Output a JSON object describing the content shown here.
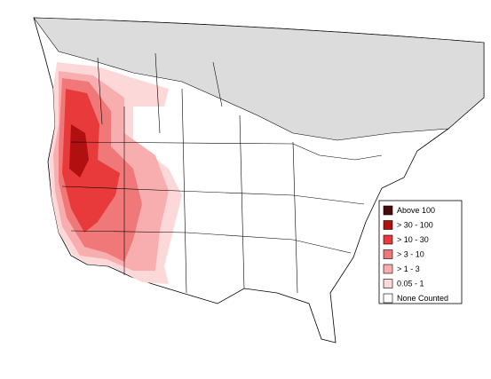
{
  "legend": {
    "items": [
      {
        "label": "Above 100",
        "color": "#4a0a0a"
      },
      {
        "label": "> 30 - 100",
        "color": "#b01010"
      },
      {
        "label": "> 10 - 30",
        "color": "#e83a3a"
      },
      {
        "label": "> 3 - 10",
        "color": "#f07878"
      },
      {
        "label": "> 1 - 3",
        "color": "#f8aeae"
      },
      {
        "label": "0.05 - 1",
        "color": "#fcd8d8"
      },
      {
        "label": "None Counted",
        "color": "#ffffff"
      }
    ]
  }
}
